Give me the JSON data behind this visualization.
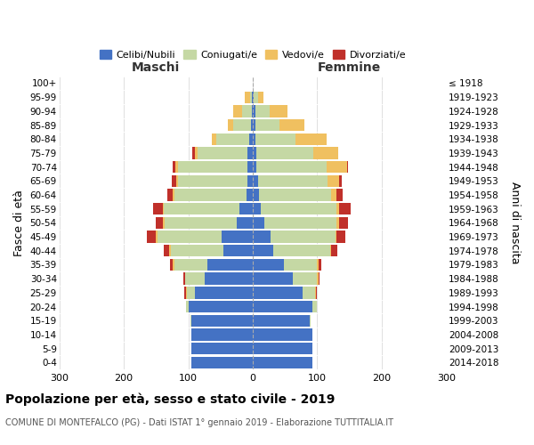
{
  "age_groups": [
    "0-4",
    "5-9",
    "10-14",
    "15-19",
    "20-24",
    "25-29",
    "30-34",
    "35-39",
    "40-44",
    "45-49",
    "50-54",
    "55-59",
    "60-64",
    "65-69",
    "70-74",
    "75-79",
    "80-84",
    "85-89",
    "90-94",
    "95-99",
    "100+"
  ],
  "birth_years": [
    "2014-2018",
    "2009-2013",
    "2004-2008",
    "1999-2003",
    "1994-1998",
    "1989-1993",
    "1984-1988",
    "1979-1983",
    "1974-1978",
    "1969-1973",
    "1964-1968",
    "1959-1963",
    "1954-1958",
    "1949-1953",
    "1944-1948",
    "1939-1943",
    "1934-1938",
    "1929-1933",
    "1924-1928",
    "1919-1923",
    "≤ 1918"
  ],
  "maschi_celibi": [
    95,
    95,
    95,
    95,
    100,
    90,
    75,
    70,
    45,
    48,
    25,
    20,
    10,
    8,
    8,
    8,
    5,
    3,
    2,
    1,
    0
  ],
  "maschi_coniugati": [
    0,
    0,
    0,
    2,
    4,
    12,
    30,
    52,
    82,
    100,
    112,
    118,
    112,
    108,
    108,
    78,
    52,
    28,
    15,
    3,
    0
  ],
  "maschi_vedovi": [
    0,
    0,
    0,
    0,
    0,
    2,
    0,
    2,
    2,
    2,
    2,
    2,
    2,
    2,
    4,
    4,
    6,
    8,
    14,
    8,
    0
  ],
  "maschi_divorziati": [
    0,
    0,
    0,
    0,
    0,
    2,
    2,
    4,
    9,
    14,
    12,
    14,
    9,
    7,
    4,
    4,
    0,
    0,
    0,
    0,
    0
  ],
  "femmine_nubili": [
    92,
    92,
    92,
    88,
    92,
    78,
    62,
    48,
    32,
    28,
    18,
    12,
    10,
    8,
    6,
    6,
    4,
    4,
    4,
    1,
    0
  ],
  "femmine_coniugate": [
    0,
    0,
    0,
    2,
    8,
    18,
    38,
    52,
    88,
    100,
    112,
    118,
    112,
    108,
    108,
    88,
    62,
    38,
    22,
    8,
    0
  ],
  "femmine_vedove": [
    0,
    0,
    0,
    0,
    0,
    2,
    2,
    2,
    2,
    2,
    4,
    4,
    8,
    18,
    32,
    38,
    48,
    38,
    28,
    8,
    0
  ],
  "femmine_divorziate": [
    0,
    0,
    0,
    0,
    0,
    2,
    2,
    4,
    9,
    14,
    14,
    18,
    9,
    4,
    2,
    0,
    0,
    0,
    0,
    0,
    0
  ],
  "colors": {
    "celibi": "#4472c4",
    "coniugati": "#c5d8a4",
    "vedovi": "#f0c060",
    "divorziati": "#c0302a"
  },
  "xlim": 300,
  "title": "Popolazione per età, sesso e stato civile - 2019",
  "subtitle": "COMUNE DI MONTEFALCO (PG) - Dati ISTAT 1° gennaio 2019 - Elaborazione TUTTITALIA.IT",
  "ylabel_left": "Fasce di età",
  "ylabel_right": "Anni di nascita",
  "maschi_label": "Maschi",
  "femmine_label": "Femmine",
  "legend_labels": [
    "Celibi/Nubili",
    "Coniugati/e",
    "Vedovi/e",
    "Divorziati/e"
  ]
}
